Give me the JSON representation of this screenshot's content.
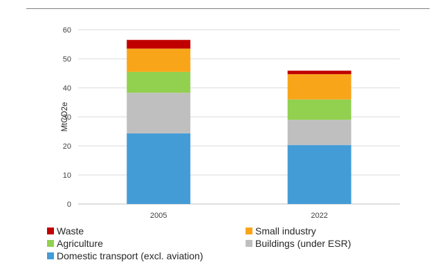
{
  "chart_data": {
    "type": "bar",
    "stacked": true,
    "categories": [
      "2005",
      "2022"
    ],
    "series": [
      {
        "name": "Domestic transport (excl. aviation)",
        "color": "#449CD7",
        "values": [
          24.3,
          20.3
        ]
      },
      {
        "name": "Buildings (under ESR)",
        "color": "#BFBFBF",
        "values": [
          14.0,
          8.7
        ]
      },
      {
        "name": "Agriculture",
        "color": "#92D050",
        "values": [
          7.2,
          7.0
        ]
      },
      {
        "name": "Small industry",
        "color": "#F9A51A",
        "values": [
          8.0,
          8.7
        ]
      },
      {
        "name": "Waste",
        "color": "#C00000",
        "values": [
          3.0,
          1.2
        ]
      }
    ],
    "ylabel": "MtCO2e",
    "xlabel": "",
    "title": "",
    "ylim": [
      0,
      60
    ],
    "yticks": [
      0,
      10,
      20,
      30,
      40,
      50,
      60
    ],
    "grid": true,
    "legend_position": "bottom"
  },
  "legend": [
    {
      "label": "Waste",
      "color": "#C00000"
    },
    {
      "label": "Small industry",
      "color": "#F9A51A"
    },
    {
      "label": "Agriculture",
      "color": "#92D050"
    },
    {
      "label": "Buildings (under ESR)",
      "color": "#BFBFBF"
    },
    {
      "label": "Domestic transport (excl. aviation)",
      "color": "#449CD7"
    }
  ]
}
